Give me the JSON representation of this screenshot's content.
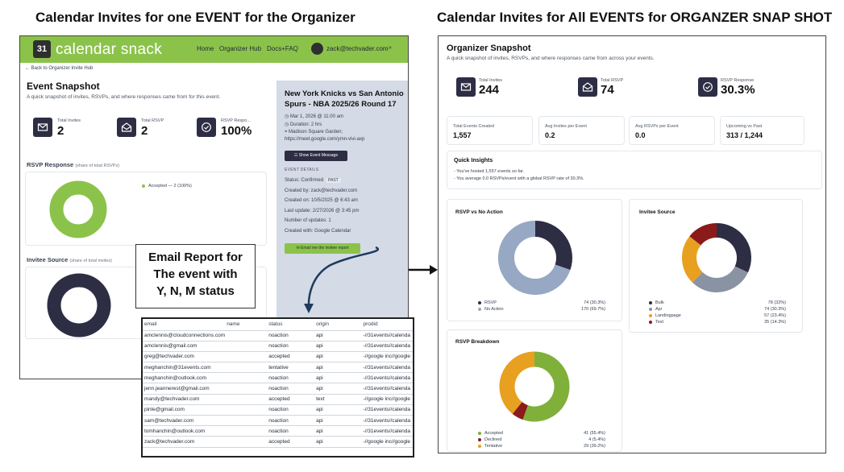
{
  "headings": {
    "left": "Calendar Invites for one EVENT for the Organizer",
    "right": "Calendar Invites for All EVENTS for ORGANZER SNAP SHOT"
  },
  "left_app": {
    "logo_mark": "31",
    "logo_text": "calendar snack",
    "nav": [
      "Home",
      "Organizer Hub",
      "Docs+FAQ"
    ],
    "user_email": "zack@techvader.com",
    "back_link": "← Back to Organizer Invite Hub",
    "title": "Event Snapshot",
    "subtitle": "A quick snapshot of invites, RSVPs, and where responses came from for this event.",
    "stats": [
      {
        "label": "Total Invites",
        "value": "2",
        "icon": "mail-icon"
      },
      {
        "label": "Total RSVP",
        "value": "2",
        "icon": "open-mail-icon"
      },
      {
        "label": "RSVP Respo...",
        "value": "100%",
        "icon": "check-circle-icon"
      }
    ],
    "rsvp_section": {
      "title": "RSVP Response",
      "note": "(share of total RSVPs)",
      "legend": "Accepted — 2 (100%)",
      "color": "#8bc34a"
    },
    "invitee_section": {
      "title": "Invitee Source",
      "note": "(share of total invites)",
      "color": "#2d2d44"
    }
  },
  "event": {
    "title": "New York Knicks vs San Antonio Spurs - NBA 2025/26 Round 17",
    "date": "Mar 1, 2026 @ 11:00 am",
    "duration": "Duration: 2 hrs",
    "location_1": "Madison Square Garden;",
    "location_2": "https://meet.google.com/ymn-vivi-axp",
    "show_button": "Show Event Message",
    "details_heading": "EVENT DETAILS",
    "status_label": "Status:",
    "status_value": "Confirmed",
    "status_badge": "PAST",
    "created_by": "Created by: zack@techvader.com",
    "created_on": "Created on: 10/5/2025 @ 6:43 am",
    "last_update": "Last update: 2/27/2026 @ 3:45 pm",
    "updates": "Number of updates: 1",
    "created_with": "Created with: Google Calendar",
    "email_button": "Email me the invitee report"
  },
  "callout": {
    "line1": "Email Report for",
    "line2": "The event with",
    "line3": "Y, N, M status"
  },
  "email_table": {
    "headers": [
      "email",
      "name",
      "status",
      "origin",
      "prodid"
    ],
    "rows": [
      [
        "amclennis@cloudconnections.com",
        "",
        "noaction",
        "api",
        "-//31events//calenda"
      ],
      [
        "amclennis@gmail.com",
        "",
        "noaction",
        "api",
        "-//31events//calenda"
      ],
      [
        "greg@techvader.com",
        "",
        "accepted",
        "api",
        "-//google inc//google"
      ],
      [
        "meghanchin@31events.com",
        "",
        "tentative",
        "api",
        "-//31events//calenda"
      ],
      [
        "meghanchin@outlook.com",
        "",
        "noaction",
        "api",
        "-//31events//calenda"
      ],
      [
        "jenn.jeannerest@gmail.com",
        "",
        "noaction",
        "api",
        "-//31events//calenda"
      ],
      [
        "mandy@techvader.com",
        "",
        "accepted",
        "text",
        "-//google inc//google"
      ],
      [
        "pinle@gmail.com",
        "",
        "noaction",
        "api",
        "-//31events//calenda"
      ],
      [
        "sam@techvader.com",
        "",
        "noaction",
        "api",
        "-//31events//calenda"
      ],
      [
        "tomhanchin@outlook.com",
        "",
        "noaction",
        "api",
        "-//31events//calenda"
      ],
      [
        "zack@techvader.com",
        "",
        "accepted",
        "api",
        "-//google inc//google"
      ]
    ]
  },
  "right_app": {
    "title": "Organizer Snapshot",
    "subtitle": "A quick snapshot of invites, RSVPs, and where responses came from across your events.",
    "stats": [
      {
        "label": "Total Invites",
        "value": "244",
        "icon": "mail-icon"
      },
      {
        "label": "Total RSVP",
        "value": "74",
        "icon": "open-mail-icon"
      },
      {
        "label": "RSVP Response",
        "value": "30.3%",
        "icon": "check-circle-icon"
      }
    ],
    "small_stats": [
      {
        "label": "Total Events Created",
        "value": "1,557"
      },
      {
        "label": "Avg Invites per Event",
        "value": "0.2"
      },
      {
        "label": "Avg RSVPs per Event",
        "value": "0.0"
      },
      {
        "label": "Upcoming vs Past",
        "value": "313 / 1,244"
      }
    ],
    "insights_title": "Quick Insights",
    "insights": [
      "- You've hosted 1,557 events so far.",
      "- You average 0.0 RSVPs/event with a global RSVP rate of 30.3%."
    ]
  },
  "chart_data": [
    {
      "type": "pie",
      "title": "RSVP vs No Action",
      "categories": [
        "RSVP",
        "No Action"
      ],
      "values": [
        74,
        170
      ],
      "labels": [
        "74 (30.3%)",
        "170 (69.7%)"
      ],
      "colors": [
        "#2d2d44",
        "#97a8c4"
      ]
    },
    {
      "type": "pie",
      "title": "Invitee Source",
      "categories": [
        "Bulk",
        "Api",
        "Landingpage",
        "Text"
      ],
      "values": [
        78,
        74,
        57,
        35
      ],
      "labels": [
        "78 (32%)",
        "74 (30.3%)",
        "57 (23.4%)",
        "35 (14.3%)"
      ],
      "colors": [
        "#2d2d44",
        "#8a93a3",
        "#e8a020",
        "#8b1a1a"
      ]
    },
    {
      "type": "pie",
      "title": "RSVP Breakdown",
      "categories": [
        "Accepted",
        "Declined",
        "Tentative"
      ],
      "values": [
        41,
        4,
        29
      ],
      "labels": [
        "41 (55.4%)",
        "4 (5.4%)",
        "29 (39.2%)"
      ],
      "colors": [
        "#7fb03a",
        "#8b1a1a",
        "#e8a020"
      ]
    }
  ]
}
